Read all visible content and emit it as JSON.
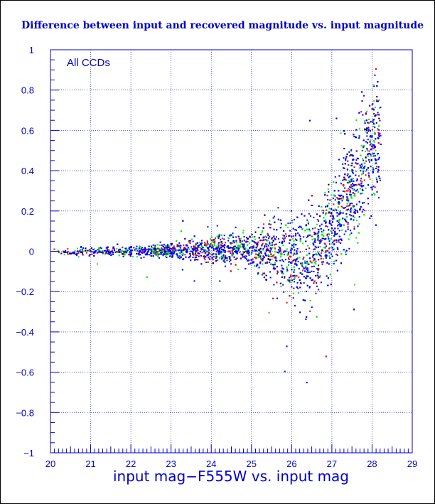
{
  "chart_data": {
    "type": "scatter",
    "title": "Difference between input and recovered magnitude vs. input magnitude",
    "xlabel": "input mag−F555W vs. input mag",
    "ylabel": "",
    "annotation": "All CCDs",
    "xlim": [
      20,
      29
    ],
    "ylim": [
      -1,
      1
    ],
    "x_ticks": [
      "20",
      "21",
      "22",
      "23",
      "24",
      "25",
      "26",
      "27",
      "28",
      "29"
    ],
    "y_ticks": [
      "−1",
      "−0.8",
      "−0.6",
      "−0.4",
      "−0.2",
      "0",
      "0.2",
      "0.4",
      "0.6",
      "0.8",
      "1"
    ],
    "grid": true,
    "colors": {
      "axis": "#0000cc",
      "title": "#0000cc"
    },
    "series": [
      {
        "color": "#0000ff",
        "envelope": [
          {
            "x": 20.0,
            "low": -0.02,
            "high": 0.02
          },
          {
            "x": 21.0,
            "low": -0.025,
            "high": 0.03
          },
          {
            "x": 22.0,
            "low": -0.03,
            "high": 0.035
          },
          {
            "x": 23.0,
            "low": -0.05,
            "high": 0.06
          },
          {
            "x": 24.0,
            "low": -0.08,
            "high": 0.1
          },
          {
            "x": 25.0,
            "low": -0.12,
            "high": 0.15
          },
          {
            "x": 25.5,
            "low": -0.2,
            "high": 0.2
          },
          {
            "x": 26.0,
            "low": -0.3,
            "high": 0.28
          },
          {
            "x": 26.5,
            "low": -0.4,
            "high": 0.35
          },
          {
            "x": 27.0,
            "low": -0.2,
            "high": 0.5
          },
          {
            "x": 27.5,
            "low": -0.05,
            "high": 0.7
          },
          {
            "x": 28.0,
            "low": 0.1,
            "high": 1.0
          }
        ]
      },
      {
        "color": "#00ee00",
        "envelope": "same"
      },
      {
        "color": "#ee0000",
        "envelope": "same"
      },
      {
        "color": "#000000",
        "envelope": "same"
      }
    ]
  }
}
